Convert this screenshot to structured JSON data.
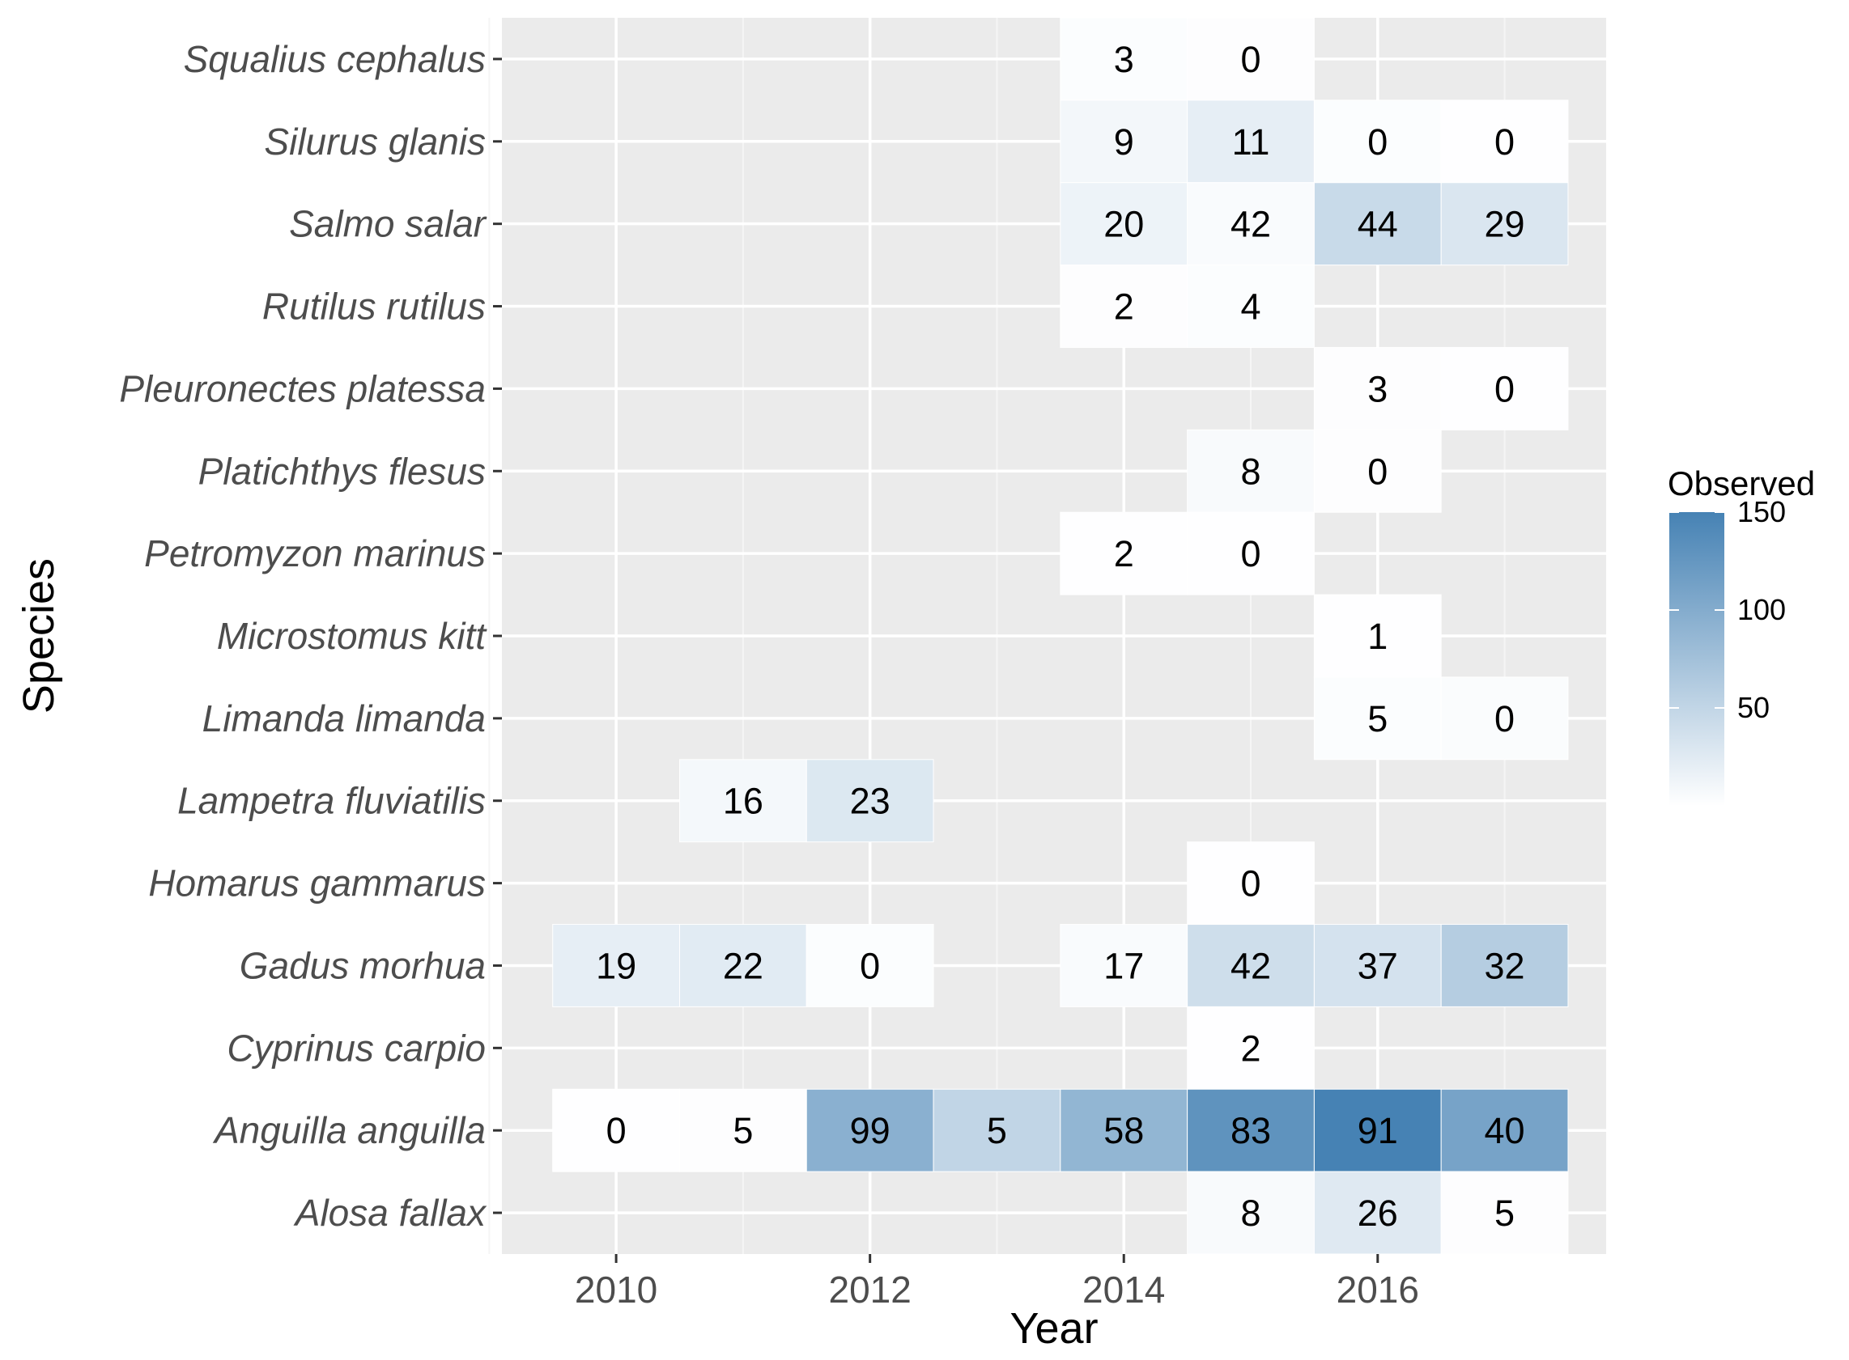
{
  "chart_data": {
    "type": "heatmap",
    "title": "",
    "xlabel": "Year",
    "ylabel": "Species",
    "x_ticks": [
      2010,
      2012,
      2014,
      2016
    ],
    "xlim": [
      2009.1,
      2017.8
    ],
    "legend": {
      "title": "Observed",
      "ticks": [
        50,
        100,
        150
      ],
      "range": [
        0,
        150
      ],
      "low_color": "#ffffff",
      "high_color": "#4682b4",
      "placement": "right"
    },
    "species": [
      "Squalius cephalus",
      "Silurus glanis",
      "Salmo salar",
      "Rutilus rutilus",
      "Pleuronectes platessa",
      "Platichthys flesus",
      "Petromyzon marinus",
      "Microstomus kitt",
      "Limanda limanda",
      "Lampetra fluviatilis",
      "Homarus gammarus",
      "Gadus morhua",
      "Cyprinus carpio",
      "Anguilla anguilla",
      "Alosa fallax"
    ],
    "cells": [
      {
        "species": "Squalius cephalus",
        "year": 2014,
        "label": "3",
        "fill_value": 3
      },
      {
        "species": "Squalius cephalus",
        "year": 2015,
        "label": "0",
        "fill_value": 2
      },
      {
        "species": "Silurus glanis",
        "year": 2014,
        "label": "9",
        "fill_value": 10
      },
      {
        "species": "Silurus glanis",
        "year": 2015,
        "label": "11",
        "fill_value": 20
      },
      {
        "species": "Silurus glanis",
        "year": 2016,
        "label": "0",
        "fill_value": 3
      },
      {
        "species": "Silurus glanis",
        "year": 2017,
        "label": "0",
        "fill_value": 1
      },
      {
        "species": "Salmo salar",
        "year": 2014,
        "label": "20",
        "fill_value": 15
      },
      {
        "species": "Salmo salar",
        "year": 2015,
        "label": "42",
        "fill_value": 5
      },
      {
        "species": "Salmo salar",
        "year": 2016,
        "label": "44",
        "fill_value": 45
      },
      {
        "species": "Salmo salar",
        "year": 2017,
        "label": "29",
        "fill_value": 30
      },
      {
        "species": "Rutilus rutilus",
        "year": 2014,
        "label": "2",
        "fill_value": 2
      },
      {
        "species": "Rutilus rutilus",
        "year": 2015,
        "label": "4",
        "fill_value": 3
      },
      {
        "species": "Pleuronectes platessa",
        "year": 2016,
        "label": "3",
        "fill_value": 2
      },
      {
        "species": "Pleuronectes platessa",
        "year": 2017,
        "label": "0",
        "fill_value": 1
      },
      {
        "species": "Platichthys flesus",
        "year": 2015,
        "label": "8",
        "fill_value": 6
      },
      {
        "species": "Platichthys flesus",
        "year": 2016,
        "label": "0",
        "fill_value": 2
      },
      {
        "species": "Petromyzon marinus",
        "year": 2014,
        "label": "2",
        "fill_value": 1
      },
      {
        "species": "Petromyzon marinus",
        "year": 2015,
        "label": "0",
        "fill_value": 1
      },
      {
        "species": "Microstomus kitt",
        "year": 2016,
        "label": "1",
        "fill_value": 1
      },
      {
        "species": "Limanda limanda",
        "year": 2016,
        "label": "5",
        "fill_value": 3
      },
      {
        "species": "Limanda limanda",
        "year": 2017,
        "label": "0",
        "fill_value": 4
      },
      {
        "species": "Lampetra fluviatilis",
        "year": 2011,
        "label": "16",
        "fill_value": 9
      },
      {
        "species": "Lampetra fluviatilis",
        "year": 2012,
        "label": "23",
        "fill_value": 28
      },
      {
        "species": "Homarus gammarus",
        "year": 2015,
        "label": "0",
        "fill_value": 1
      },
      {
        "species": "Gadus morhua",
        "year": 2010,
        "label": "19",
        "fill_value": 20
      },
      {
        "species": "Gadus morhua",
        "year": 2011,
        "label": "22",
        "fill_value": 24
      },
      {
        "species": "Gadus morhua",
        "year": 2012,
        "label": "0",
        "fill_value": 3
      },
      {
        "species": "Gadus morhua",
        "year": 2014,
        "label": "17",
        "fill_value": 5
      },
      {
        "species": "Gadus morhua",
        "year": 2015,
        "label": "42",
        "fill_value": 40
      },
      {
        "species": "Gadus morhua",
        "year": 2016,
        "label": "37",
        "fill_value": 35
      },
      {
        "species": "Gadus morhua",
        "year": 2017,
        "label": "32",
        "fill_value": 60
      },
      {
        "species": "Cyprinus carpio",
        "year": 2015,
        "label": "2",
        "fill_value": 1
      },
      {
        "species": "Anguilla anguilla",
        "year": 2010,
        "label": "0",
        "fill_value": 1
      },
      {
        "species": "Anguilla anguilla",
        "year": 2011,
        "label": "5",
        "fill_value": 2
      },
      {
        "species": "Anguilla anguilla",
        "year": 2012,
        "label": "99",
        "fill_value": 95
      },
      {
        "species": "Anguilla anguilla",
        "year": 2013,
        "label": "5",
        "fill_value": 50
      },
      {
        "species": "Anguilla anguilla",
        "year": 2014,
        "label": "58",
        "fill_value": 88
      },
      {
        "species": "Anguilla anguilla",
        "year": 2015,
        "label": "83",
        "fill_value": 130
      },
      {
        "species": "Anguilla anguilla",
        "year": 2016,
        "label": "91",
        "fill_value": 150
      },
      {
        "species": "Anguilla anguilla",
        "year": 2017,
        "label": "40",
        "fill_value": 110
      },
      {
        "species": "Alosa fallax",
        "year": 2015,
        "label": "8",
        "fill_value": 6
      },
      {
        "species": "Alosa fallax",
        "year": 2016,
        "label": "26",
        "fill_value": 26
      },
      {
        "species": "Alosa fallax",
        "year": 2017,
        "label": "5",
        "fill_value": 2
      }
    ]
  }
}
